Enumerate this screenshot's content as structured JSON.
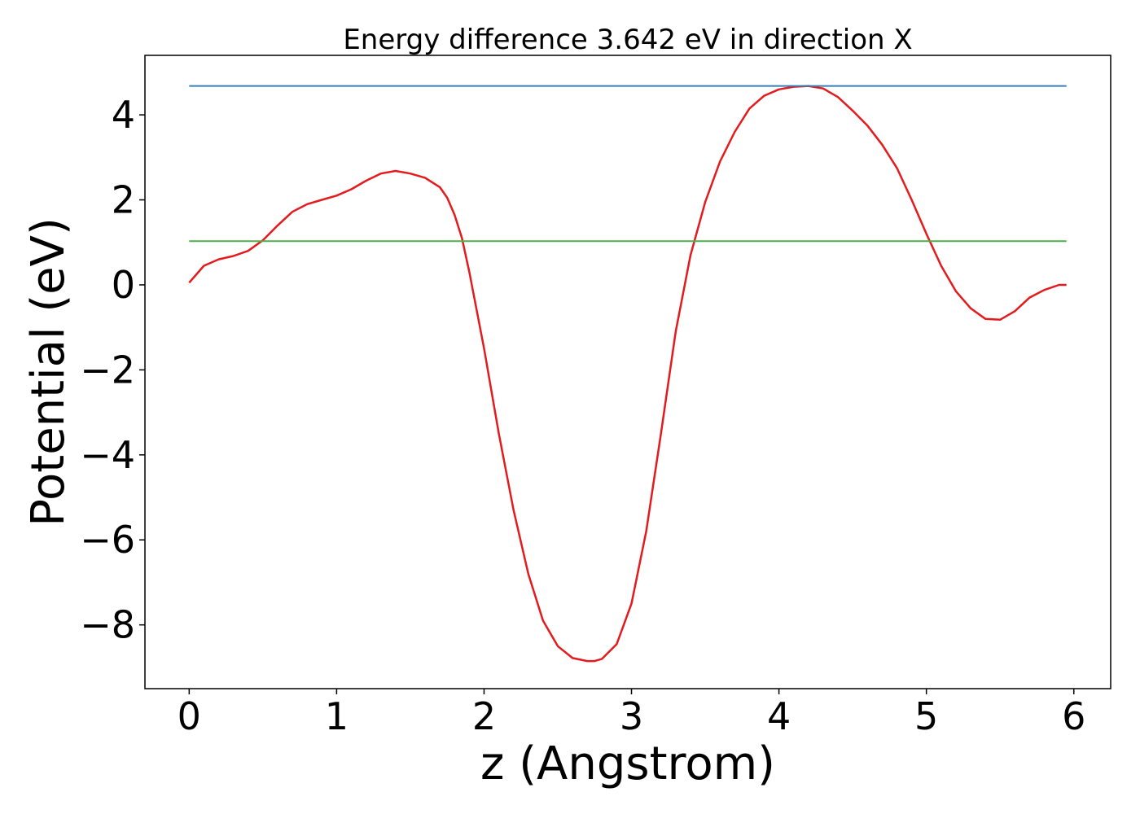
{
  "chart_data": {
    "type": "line",
    "title": "Energy difference 3.642 eV in direction X",
    "xlabel": "z (Angstrom)",
    "ylabel": "Potential (eV)",
    "xlim": [
      -0.3,
      6.25
    ],
    "ylim": [
      -9.5,
      5.4
    ],
    "xticks": [
      0,
      1,
      2,
      3,
      4,
      5,
      6
    ],
    "xtick_labels": [
      "0",
      "1",
      "2",
      "3",
      "4",
      "5",
      "6"
    ],
    "yticks": [
      4,
      2,
      0,
      -2,
      -4,
      -6,
      -8
    ],
    "ytick_labels": [
      "4",
      "2",
      "0",
      "−2",
      "−4",
      "−6",
      "−8"
    ],
    "grid": false,
    "series": [
      {
        "color": "#e41a1c",
        "x": [
          0,
          0.1,
          0.2,
          0.3,
          0.4,
          0.5,
          0.6,
          0.7,
          0.8,
          0.9,
          1.0,
          1.1,
          1.2,
          1.3,
          1.4,
          1.5,
          1.6,
          1.7,
          1.75,
          1.8,
          1.85,
          1.9,
          2.0,
          2.1,
          2.2,
          2.3,
          2.4,
          2.5,
          2.6,
          2.7,
          2.75,
          2.8,
          2.9,
          3.0,
          3.1,
          3.2,
          3.3,
          3.4,
          3.5,
          3.6,
          3.7,
          3.8,
          3.9,
          4.0,
          4.1,
          4.2,
          4.3,
          4.4,
          4.5,
          4.6,
          4.7,
          4.8,
          4.9,
          5.0,
          5.1,
          5.2,
          5.3,
          5.4,
          5.5,
          5.6,
          5.7,
          5.8,
          5.9,
          5.95
        ],
        "y": [
          0.05,
          0.45,
          0.6,
          0.68,
          0.8,
          1.05,
          1.4,
          1.72,
          1.9,
          2.0,
          2.1,
          2.25,
          2.45,
          2.62,
          2.68,
          2.62,
          2.52,
          2.3,
          2.05,
          1.65,
          1.1,
          0.3,
          -1.5,
          -3.5,
          -5.3,
          -6.8,
          -7.9,
          -8.5,
          -8.78,
          -8.85,
          -8.85,
          -8.8,
          -8.45,
          -7.5,
          -5.8,
          -3.5,
          -1.1,
          0.7,
          1.95,
          2.9,
          3.6,
          4.15,
          4.45,
          4.6,
          4.66,
          4.68,
          4.62,
          4.42,
          4.1,
          3.75,
          3.3,
          2.75,
          2.0,
          1.2,
          0.45,
          -0.15,
          -0.55,
          -0.8,
          -0.82,
          -0.62,
          -0.3,
          -0.12,
          0,
          0
        ]
      },
      {
        "color": "#377eb8",
        "x": [
          0,
          5.95
        ],
        "y": [
          4.68,
          4.68
        ]
      },
      {
        "color": "#4daf4a",
        "x": [
          0,
          5.95
        ],
        "y": [
          1.03,
          1.03
        ]
      }
    ]
  }
}
